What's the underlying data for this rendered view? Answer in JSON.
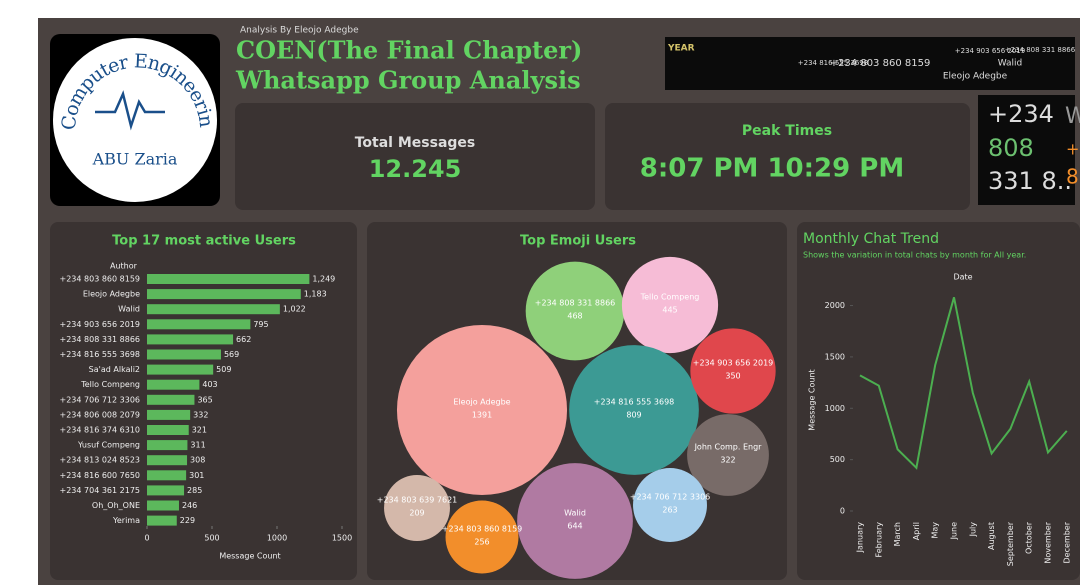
{
  "header": {
    "byline": "Analysis By Eleojo Adegbe",
    "title_line1": "COEN(The Final Chapter)",
    "title_line2": "Whatsapp Group Analysis",
    "logo_top": "Computer Engineering",
    "logo_bottom": "ABU Zaria",
    "filter_label": "YEAR"
  },
  "kpis": [
    {
      "label": "Total Messages",
      "value": "12.245"
    },
    {
      "label": "Peak Times",
      "value": "8:07 PM 10:29 PM"
    }
  ],
  "word_cloud": [
    "+234 803 860 8159",
    "Walid",
    "+234 903 656 2019",
    "Eleojo Adegbe",
    "+234 808 331 8866",
    "+234 816 555 3698"
  ],
  "word_cloud_zoom": [
    "+234",
    "808",
    "331 8..",
    "W",
    "+",
    "8"
  ],
  "chart_data": [
    {
      "type": "hbar",
      "title": "Top 17 most active Users",
      "y_label": "Author",
      "x_label": "Message Count",
      "color": "#5cb85c",
      "categories": [
        "+234 803 860 8159",
        "Eleojo Adegbe",
        "Walid",
        "+234 903 656 2019",
        "+234 808 331 8866",
        "+234 816 555 3698",
        "Sa'ad Alkali2",
        "Tello Compeng",
        "+234 706 712 3306",
        "+234 806 008 2079",
        "+234 816 374 6310",
        "Yusuf Compeng",
        "+234 813 024 8523",
        "+234 816 600 7650",
        "+234 704 361 2175",
        "Oh_Oh_ONE",
        "Yerima"
      ],
      "values": [
        1249,
        1183,
        1022,
        795,
        662,
        569,
        509,
        403,
        365,
        332,
        321,
        311,
        308,
        301,
        285,
        246,
        229
      ],
      "value_labels": [
        "1,249",
        "1,183",
        "1,022",
        "795",
        "662",
        "569",
        "509",
        "403",
        "365",
        "332",
        "321",
        "311",
        "308",
        "301",
        "285",
        "246",
        "229"
      ],
      "xlim": [
        0,
        1500
      ],
      "xticks": [
        0,
        500,
        1000,
        1500
      ]
    },
    {
      "type": "bubble",
      "title": "Top Emoji Users",
      "categories": [
        "Eleojo Adegbe",
        "+234 808 331 8866",
        "Tello Compeng",
        "+234 816 555 3698",
        "+234 903 656 2019",
        "John Comp. Engr",
        "+234 706 712 3306",
        "Walid",
        "+234 803 860 8159",
        "+234 803 639 7621"
      ],
      "values": [
        1391,
        468,
        445,
        809,
        350,
        322,
        263,
        644,
        256,
        209
      ],
      "colors": [
        "#f4a09c",
        "#8fd07a",
        "#f6bcd6",
        "#3c9a94",
        "#e0474c",
        "#786b68",
        "#a5cdea",
        "#b07aa2",
        "#f28e2b",
        "#d4b8aa"
      ]
    },
    {
      "type": "line",
      "title": "Monthly Chat Trend",
      "subtitle": "Shows the variation in total chats by month for All  year.",
      "x_label": "Date",
      "y_label": "Message Count",
      "color": "#4caf50",
      "categories": [
        "January",
        "February",
        "March",
        "April",
        "May",
        "June",
        "July",
        "August",
        "September",
        "October",
        "November",
        "December"
      ],
      "values": [
        1320,
        1220,
        600,
        420,
        1420,
        2080,
        1150,
        560,
        800,
        1260,
        570,
        780
      ],
      "ylim": [
        0,
        2200
      ],
      "yticks": [
        0,
        500,
        1000,
        1500,
        2000
      ]
    }
  ]
}
